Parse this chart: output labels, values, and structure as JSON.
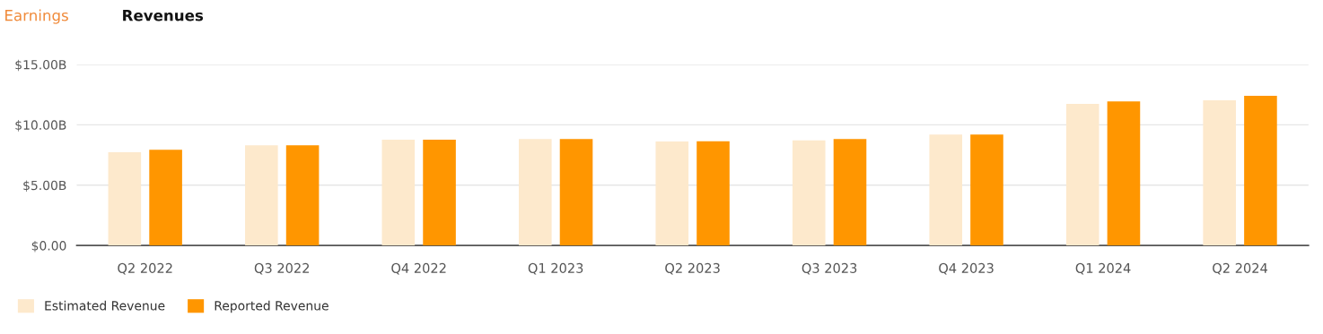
{
  "chart_data": {
    "type": "bar",
    "title": "Revenues",
    "annotations": [
      "Earnings"
    ],
    "categories": [
      "Q2 2022",
      "Q3 2022",
      "Q4 2022",
      "Q1 2023",
      "Q2 2023",
      "Q3 2023",
      "Q4 2023",
      "Q1 2024",
      "Q2 2024"
    ],
    "series": [
      {
        "name": "Estimated Revenue",
        "color": "#fde9cc",
        "values": [
          7.73,
          8.3,
          8.77,
          8.82,
          8.62,
          8.72,
          9.2,
          11.73,
          12.03
        ]
      },
      {
        "name": "Reported Revenue",
        "color": "#ff9600",
        "values": [
          7.93,
          8.3,
          8.77,
          8.82,
          8.63,
          8.82,
          9.2,
          11.93,
          12.41
        ]
      }
    ],
    "ylim": [
      0,
      15
    ],
    "yticks": [
      {
        "value": 0,
        "label": "$0.00"
      },
      {
        "value": 5,
        "label": "$5.00B"
      },
      {
        "value": 10,
        "label": "$10.00B"
      },
      {
        "value": 15,
        "label": "$15.00B"
      }
    ],
    "grid": "y",
    "legend": "bottom left"
  }
}
